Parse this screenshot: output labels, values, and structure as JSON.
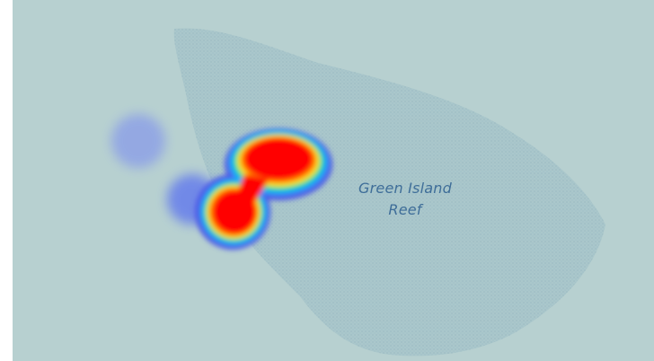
{
  "map": {
    "colors": {
      "water": "#b7d0d0",
      "reef_fill": "#aac7cb",
      "reef_dots": "#7fa3b5",
      "label": "#3f6e99",
      "heat_low": "#5b73e8",
      "heat_high": "#ff0000"
    },
    "reef_label": {
      "line1": "Green Island",
      "line2": "Reef"
    },
    "layer": "heatmap"
  }
}
